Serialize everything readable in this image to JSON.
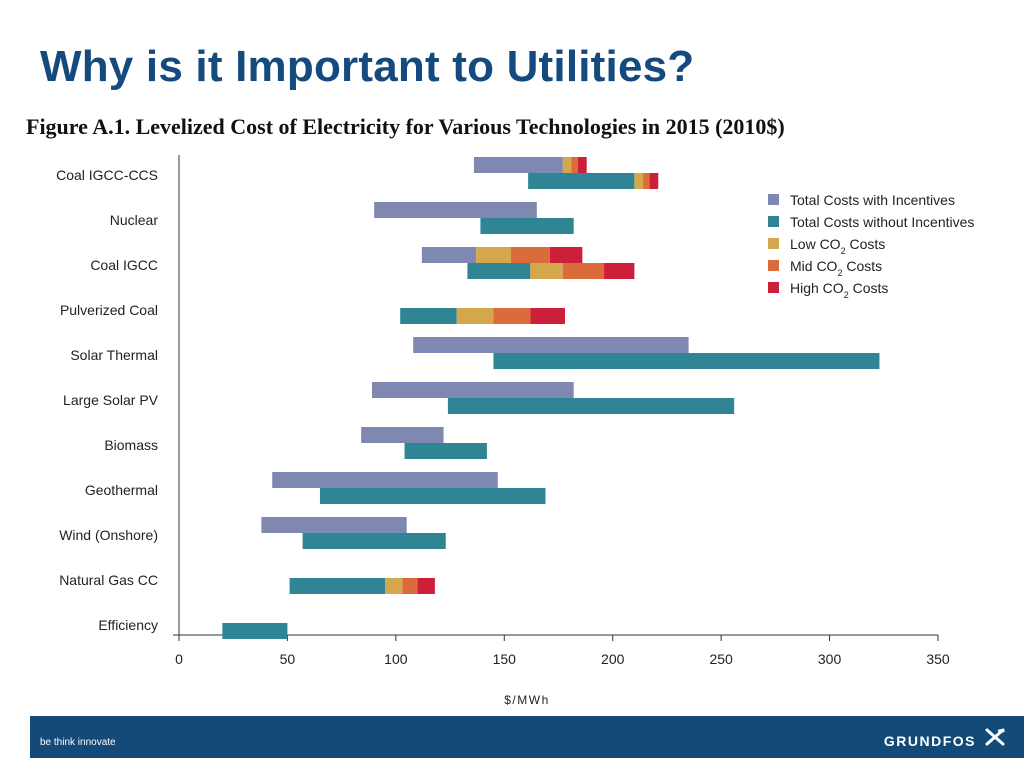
{
  "slide": {
    "title": "Why is it Important to Utilities?",
    "figure_caption": "Figure A.1. Levelized Cost of Electricity for Various Technologies in 2015 (2010$)"
  },
  "footer": {
    "tagline": "be think innovate",
    "brand": "GRUNDFOS",
    "brand_icon": "grundfos-x-logo-icon",
    "background": "#134a78"
  },
  "colors": {
    "with_incentives": "#7f88b1",
    "without_incentives": "#2f8593",
    "low_co2": "#d4a74d",
    "mid_co2": "#db6b3a",
    "high_co2": "#cc1f3a",
    "title": "#154a7e"
  },
  "chart_data": {
    "type": "bar",
    "orientation": "horizontal-floating",
    "xlabel": "$/MWh",
    "ylabel": "",
    "xlim": [
      0,
      350
    ],
    "xticks": [
      0,
      50,
      100,
      150,
      200,
      250,
      300,
      350
    ],
    "grid": false,
    "legend_position": "top-right",
    "legend": [
      {
        "key": "with_incentives",
        "label": "Total Costs with Incentives",
        "sub": ""
      },
      {
        "key": "without_incentives",
        "label": "Total Costs without Incentives",
        "sub": ""
      },
      {
        "key": "low_co2",
        "label": "Low CO",
        "sub": "2",
        "after": " Costs"
      },
      {
        "key": "mid_co2",
        "label": "Mid CO",
        "sub": "2",
        "after": " Costs"
      },
      {
        "key": "high_co2",
        "label": "High CO",
        "sub": "2",
        "after": " Costs"
      }
    ],
    "categories": [
      "Coal IGCC-CCS",
      "Nuclear",
      "Coal IGCC",
      "Pulverized Coal",
      "Solar Thermal",
      "Large Solar PV",
      "Biomass",
      "Geothermal",
      "Wind  (Onshore)",
      "Natural Gas CC",
      "Efficiency"
    ],
    "rows": [
      {
        "with_incentives": {
          "segments": [
            [
              136,
              177,
              "with_incentives"
            ],
            [
              177,
              181,
              "low_co2"
            ],
            [
              181,
              184,
              "mid_co2"
            ],
            [
              184,
              188,
              "high_co2"
            ]
          ]
        },
        "without_incentives": {
          "segments": [
            [
              161,
              210,
              "without_incentives"
            ],
            [
              210,
              214,
              "low_co2"
            ],
            [
              214,
              217,
              "mid_co2"
            ],
            [
              217,
              221,
              "high_co2"
            ]
          ]
        }
      },
      {
        "with_incentives": {
          "segments": [
            [
              90,
              165,
              "with_incentives"
            ]
          ]
        },
        "without_incentives": {
          "segments": [
            [
              139,
              182,
              "without_incentives"
            ]
          ]
        }
      },
      {
        "with_incentives": {
          "segments": [
            [
              112,
              137,
              "with_incentives"
            ],
            [
              137,
              153,
              "low_co2"
            ],
            [
              153,
              171,
              "mid_co2"
            ],
            [
              171,
              186,
              "high_co2"
            ]
          ]
        },
        "without_incentives": {
          "segments": [
            [
              133,
              162,
              "without_incentives"
            ],
            [
              162,
              177,
              "low_co2"
            ],
            [
              177,
              196,
              "mid_co2"
            ],
            [
              196,
              210,
              "high_co2"
            ]
          ]
        }
      },
      {
        "with_incentives": null,
        "without_incentives": {
          "segments": [
            [
              102,
              128,
              "without_incentives"
            ],
            [
              128,
              145,
              "low_co2"
            ],
            [
              145,
              162,
              "mid_co2"
            ],
            [
              162,
              178,
              "high_co2"
            ]
          ]
        }
      },
      {
        "with_incentives": {
          "segments": [
            [
              108,
              235,
              "with_incentives"
            ]
          ]
        },
        "without_incentives": {
          "segments": [
            [
              145,
              323,
              "without_incentives"
            ]
          ]
        }
      },
      {
        "with_incentives": {
          "segments": [
            [
              89,
              182,
              "with_incentives"
            ]
          ]
        },
        "without_incentives": {
          "segments": [
            [
              124,
              256,
              "without_incentives"
            ]
          ]
        }
      },
      {
        "with_incentives": {
          "segments": [
            [
              84,
              122,
              "with_incentives"
            ]
          ]
        },
        "without_incentives": {
          "segments": [
            [
              104,
              142,
              "without_incentives"
            ]
          ]
        }
      },
      {
        "with_incentives": {
          "segments": [
            [
              43,
              147,
              "with_incentives"
            ]
          ]
        },
        "without_incentives": {
          "segments": [
            [
              65,
              169,
              "without_incentives"
            ]
          ]
        }
      },
      {
        "with_incentives": {
          "segments": [
            [
              38,
              105,
              "with_incentives"
            ]
          ]
        },
        "without_incentives": {
          "segments": [
            [
              57,
              123,
              "without_incentives"
            ]
          ]
        }
      },
      {
        "with_incentives": null,
        "without_incentives": {
          "segments": [
            [
              51,
              95,
              "without_incentives"
            ],
            [
              95,
              103,
              "low_co2"
            ],
            [
              103,
              110,
              "mid_co2"
            ],
            [
              110,
              118,
              "high_co2"
            ]
          ]
        }
      },
      {
        "with_incentives": null,
        "without_incentives": {
          "segments": [
            [
              20,
              50,
              "without_incentives"
            ]
          ]
        }
      }
    ]
  }
}
